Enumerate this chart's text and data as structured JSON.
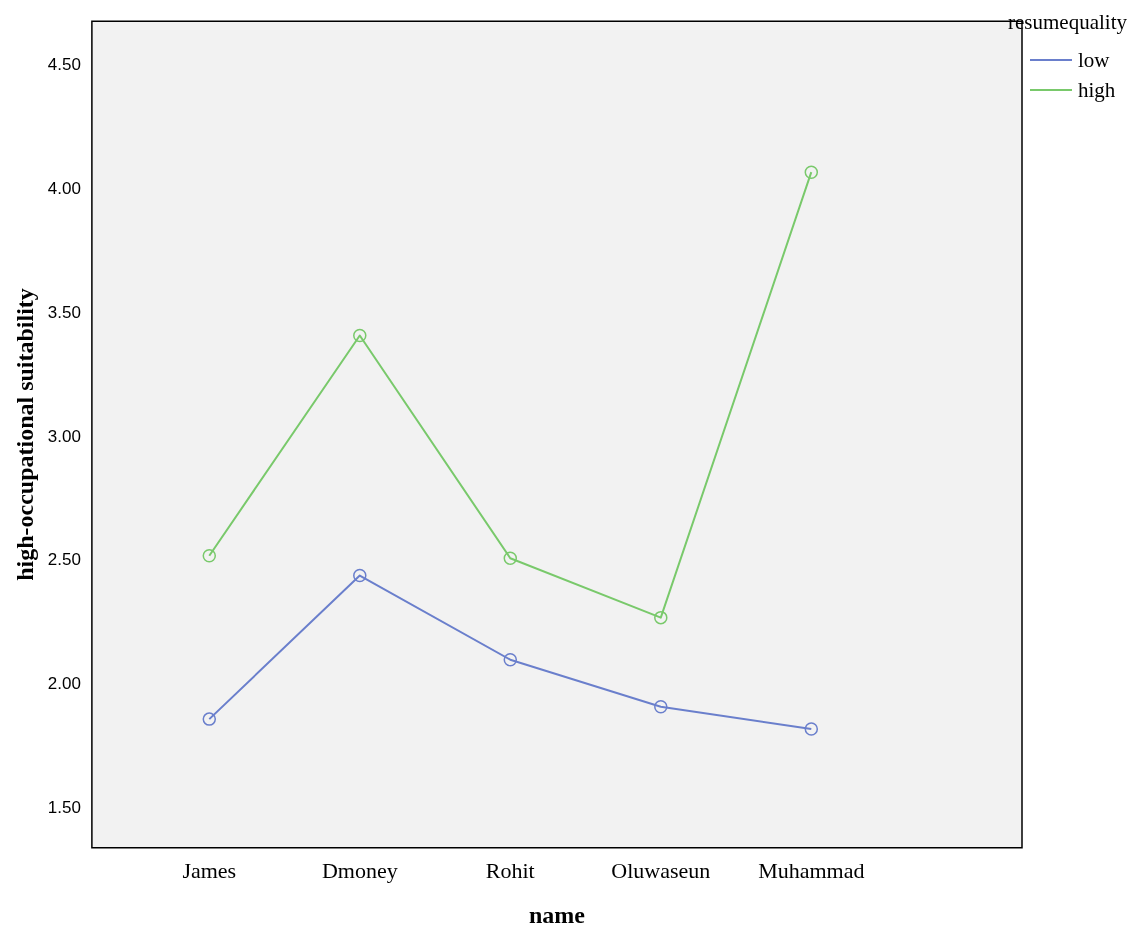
{
  "chart_data": {
    "type": "line",
    "xlabel": "name",
    "ylabel": "high-occupational suitability",
    "legend_title": "resumequality",
    "categories": [
      "James",
      "Dmoney",
      "Rohit",
      "Oluwaseun",
      "Muhammad"
    ],
    "series": [
      {
        "name": "low",
        "color": "#6a7fcc",
        "values": [
          1.86,
          2.44,
          2.1,
          1.91,
          1.82
        ]
      },
      {
        "name": "high",
        "color": "#79c96b",
        "values": [
          2.52,
          3.41,
          2.51,
          2.27,
          4.07
        ]
      }
    ],
    "ylim": [
      1.34,
      4.68
    ],
    "yticks": [
      {
        "value": 1.5,
        "label": "1.50"
      },
      {
        "value": 2,
        "label": "2.00"
      },
      {
        "value": 2.5,
        "label": "2.50"
      },
      {
        "value": 3,
        "label": "3.00"
      },
      {
        "value": 3.5,
        "label": "3.50"
      },
      {
        "value": 4,
        "label": "4.00"
      },
      {
        "value": 4.5,
        "label": "4.50"
      }
    ],
    "grid": false,
    "legend": "top right",
    "marker": "circle",
    "line_style": "solid"
  }
}
